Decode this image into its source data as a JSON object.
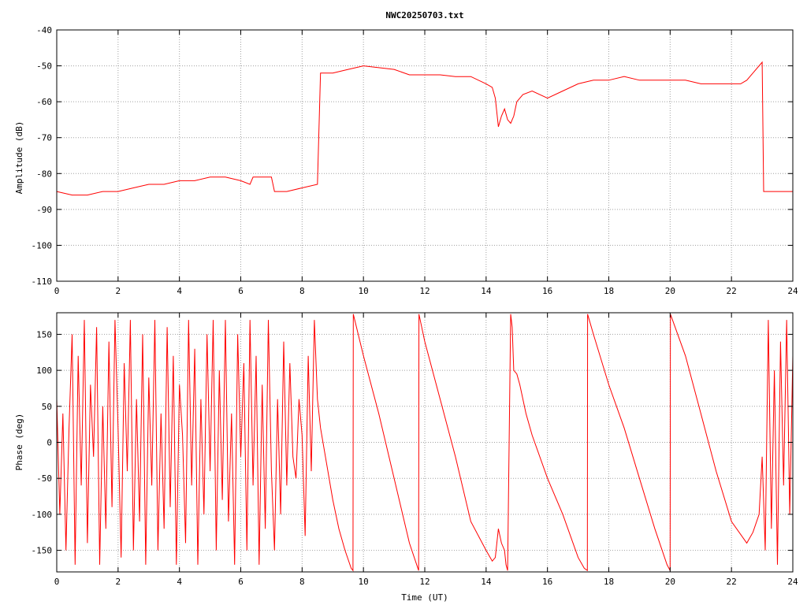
{
  "chart_data": [
    {
      "type": "line",
      "title": "NWC20250703.txt",
      "xlabel": "",
      "ylabel": "Amplitude (dB)",
      "xlim": [
        0,
        24
      ],
      "ylim": [
        -110,
        -40
      ],
      "xticks": [
        "0",
        "2",
        "4",
        "6",
        "8",
        "10",
        "12",
        "14",
        "16",
        "18",
        "20",
        "22",
        "24"
      ],
      "yticks": [
        "-40",
        "-50",
        "-60",
        "-70",
        "-80",
        "-90",
        "-100",
        "-110"
      ],
      "grid": true,
      "series": [
        {
          "color": "#ff0000",
          "x": [
            0,
            0.5,
            1,
            1.5,
            2,
            2.5,
            3,
            3.5,
            4,
            4.5,
            5,
            5.5,
            6,
            6.3,
            6.4,
            6.7,
            7.0,
            7.1,
            7.5,
            8.0,
            8.5,
            8.6,
            9.0,
            9.5,
            10.0,
            10.5,
            11.0,
            11.5,
            12.0,
            12.5,
            13.0,
            13.5,
            14.0,
            14.2,
            14.3,
            14.4,
            14.5,
            14.6,
            14.7,
            14.8,
            14.9,
            15.0,
            15.2,
            15.5,
            16.0,
            16.5,
            17.0,
            17.5,
            18.0,
            18.5,
            19.0,
            19.5,
            20.0,
            20.5,
            21.0,
            21.5,
            22.0,
            22.3,
            22.5,
            22.7,
            23.0,
            23.05,
            23.5,
            24.0
          ],
          "y": [
            -85,
            -86,
            -86,
            -85,
            -85,
            -84,
            -83,
            -83,
            -82,
            -82,
            -81,
            -81,
            -82,
            -83,
            -81,
            -81,
            -81,
            -85,
            -85,
            -84,
            -83,
            -52,
            -52,
            -51,
            -50,
            -50.5,
            -51,
            -52.5,
            -52.5,
            -52.5,
            -53,
            -53,
            -55,
            -56,
            -59,
            -67,
            -64,
            -62,
            -65,
            -66,
            -64,
            -60,
            -58,
            -57,
            -59,
            -57,
            -55,
            -54,
            -54,
            -53,
            -54,
            -54,
            -54,
            -54,
            -55,
            -55,
            -55,
            -55,
            -54,
            -52,
            -49,
            -85,
            -85,
            -85
          ]
        }
      ]
    },
    {
      "type": "line",
      "title": "",
      "xlabel": "Time (UT)",
      "ylabel": "Phase (deg)",
      "xlim": [
        0,
        24
      ],
      "ylim": [
        -180,
        180
      ],
      "xticks": [
        "0",
        "2",
        "4",
        "6",
        "8",
        "10",
        "12",
        "14",
        "16",
        "18",
        "20",
        "22",
        "24"
      ],
      "yticks": [
        "150",
        "100",
        "50",
        "0",
        "-50",
        "-100",
        "-150"
      ],
      "grid": true,
      "series": [
        {
          "color": "#ff0000",
          "x": [
            0,
            0.1,
            0.2,
            0.3,
            0.4,
            0.5,
            0.6,
            0.7,
            0.8,
            0.9,
            1.0,
            1.1,
            1.2,
            1.3,
            1.4,
            1.5,
            1.6,
            1.7,
            1.8,
            1.9,
            2.0,
            2.1,
            2.2,
            2.3,
            2.4,
            2.5,
            2.6,
            2.7,
            2.8,
            2.9,
            3.0,
            3.1,
            3.2,
            3.3,
            3.4,
            3.5,
            3.6,
            3.7,
            3.8,
            3.9,
            4.0,
            4.1,
            4.2,
            4.3,
            4.4,
            4.5,
            4.6,
            4.7,
            4.8,
            4.9,
            5.0,
            5.1,
            5.2,
            5.3,
            5.4,
            5.5,
            5.6,
            5.7,
            5.8,
            5.9,
            6.0,
            6.1,
            6.2,
            6.3,
            6.4,
            6.5,
            6.6,
            6.7,
            6.8,
            6.9,
            7.0,
            7.1,
            7.2,
            7.3,
            7.4,
            7.5,
            7.6,
            7.7,
            7.8,
            7.9,
            8.0,
            8.1,
            8.2,
            8.3,
            8.4,
            8.5,
            8.6,
            8.8,
            9.0,
            9.2,
            9.4,
            9.6,
            9.66,
            9.67,
            10.0,
            10.5,
            11.0,
            11.5,
            11.8,
            11.81,
            12.0,
            12.5,
            13.0,
            13.5,
            14.0,
            14.2,
            14.3,
            14.4,
            14.5,
            14.6,
            14.65,
            14.7,
            14.8,
            14.85,
            14.9,
            15.0,
            15.1,
            15.3,
            15.5,
            16.0,
            16.5,
            17.0,
            17.2,
            17.3,
            17.31,
            17.5,
            18.0,
            18.5,
            19.0,
            19.5,
            19.9,
            20.0,
            20.01,
            20.5,
            21.0,
            21.5,
            22.0,
            22.5,
            22.7,
            22.9,
            23.0,
            23.1,
            23.2,
            23.3,
            23.4,
            23.5,
            23.6,
            23.7,
            23.8,
            23.9,
            24.0
          ],
          "y": [
            60,
            -100,
            40,
            -150,
            20,
            150,
            -170,
            120,
            -60,
            170,
            -140,
            80,
            -20,
            160,
            -170,
            50,
            -120,
            140,
            -90,
            170,
            20,
            -160,
            110,
            -40,
            170,
            -150,
            60,
            -110,
            150,
            -170,
            90,
            -60,
            170,
            -150,
            40,
            -120,
            160,
            -90,
            120,
            -170,
            80,
            10,
            -140,
            170,
            -60,
            130,
            -170,
            60,
            -100,
            150,
            -40,
            170,
            -150,
            100,
            -80,
            170,
            -110,
            40,
            -170,
            150,
            -20,
            110,
            -150,
            170,
            -60,
            120,
            -170,
            80,
            -120,
            170,
            -40,
            -150,
            60,
            -100,
            140,
            -60,
            110,
            -20,
            -50,
            60,
            10,
            -130,
            120,
            -40,
            170,
            60,
            20,
            -30,
            -80,
            -120,
            -150,
            -175,
            -178,
            178,
            120,
            40,
            -50,
            -140,
            -178,
            178,
            140,
            60,
            -20,
            -110,
            -150,
            -165,
            -160,
            -120,
            -140,
            -150,
            -170,
            -178,
            178,
            160,
            100,
            95,
            80,
            40,
            10,
            -50,
            -100,
            -160,
            -175,
            -178,
            178,
            150,
            80,
            20,
            -50,
            -120,
            -170,
            -178,
            178,
            120,
            40,
            -40,
            -110,
            -140,
            -125,
            -100,
            -20,
            -150,
            170,
            -120,
            100,
            -170,
            140,
            -60,
            170,
            -100,
            120
          ]
        }
      ]
    }
  ]
}
